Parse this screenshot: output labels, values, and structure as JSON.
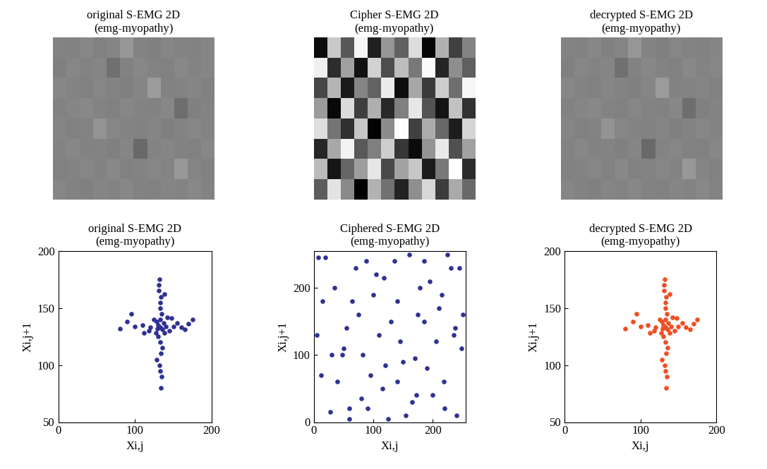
{
  "chart_data": [
    {
      "type": "heatmap",
      "title": "original S-EMG 2D\n(emg-myopathy)",
      "tick_labels": false,
      "clim": [
        0,
        255
      ],
      "cells": [
        [
          132,
          130,
          135,
          129,
          133,
          150,
          131,
          128,
          134,
          132,
          130,
          133
        ],
        [
          128,
          134,
          131,
          133,
          112,
          130,
          135,
          132,
          129,
          136,
          131,
          134
        ],
        [
          135,
          131,
          129,
          134,
          132,
          128,
          133,
          155,
          130,
          131,
          133,
          129
        ],
        [
          130,
          133,
          136,
          131,
          129,
          134,
          132,
          130,
          135,
          110,
          128,
          132
        ],
        [
          133,
          129,
          131,
          148,
          134,
          131,
          130,
          133,
          128,
          132,
          134,
          131
        ],
        [
          131,
          135,
          130,
          132,
          128,
          133,
          105,
          131,
          134,
          130,
          129,
          135
        ],
        [
          129,
          132,
          134,
          130,
          136,
          129,
          132,
          134,
          131,
          152,
          133,
          130
        ],
        [
          134,
          130,
          128,
          133,
          131,
          135,
          130,
          129,
          133,
          131,
          136,
          132
        ]
      ]
    },
    {
      "type": "heatmap",
      "title": "Cipher S-EMG 2D\n(emg-myopathy)",
      "tick_labels": false,
      "clim": [
        0,
        255
      ],
      "cells": [
        [
          12,
          200,
          87,
          245,
          33,
          150,
          98,
          220,
          5,
          176,
          64,
          131
        ],
        [
          240,
          45,
          160,
          18,
          210,
          77,
          189,
          120,
          250,
          36,
          142,
          95
        ],
        [
          70,
          181,
          25,
          133,
          99,
          236,
          14,
          167,
          58,
          205,
          111,
          246
        ],
        [
          155,
          8,
          219,
          62,
          175,
          40,
          128,
          231,
          83,
          19,
          194,
          50
        ],
        [
          222,
          116,
          48,
          197,
          3,
          140,
          252,
          66,
          172,
          104,
          29,
          213
        ],
        [
          38,
          168,
          243,
          90,
          127,
          206,
          55,
          11,
          148,
          233,
          80,
          161
        ],
        [
          187,
          22,
          102,
          158,
          230,
          72,
          164,
          199,
          27,
          121,
          254,
          44
        ],
        [
          93,
          227,
          137,
          0,
          178,
          114,
          35,
          143,
          215,
          60,
          170,
          106
        ]
      ]
    },
    {
      "type": "heatmap",
      "title": "decrypted S-EMG 2D\n(emg-myopathy)",
      "tick_labels": false,
      "clim": [
        0,
        255
      ],
      "cells": [
        [
          132,
          130,
          135,
          129,
          133,
          150,
          131,
          128,
          134,
          132,
          130,
          133
        ],
        [
          128,
          134,
          131,
          133,
          112,
          130,
          135,
          132,
          129,
          136,
          131,
          134
        ],
        [
          135,
          131,
          129,
          134,
          132,
          128,
          133,
          155,
          130,
          131,
          133,
          129
        ],
        [
          130,
          133,
          136,
          131,
          129,
          134,
          132,
          130,
          135,
          110,
          128,
          132
        ],
        [
          133,
          129,
          131,
          148,
          134,
          131,
          130,
          133,
          128,
          132,
          134,
          131
        ],
        [
          131,
          135,
          130,
          132,
          128,
          133,
          105,
          131,
          134,
          130,
          129,
          135
        ],
        [
          129,
          132,
          134,
          130,
          136,
          129,
          132,
          134,
          131,
          152,
          133,
          130
        ],
        [
          134,
          130,
          128,
          133,
          131,
          135,
          130,
          129,
          133,
          131,
          136,
          132
        ]
      ]
    },
    {
      "type": "scatter",
      "title": "original S-EMG 2D\n(emg-myopathy)",
      "x_label": "Xi,j",
      "y_label": "Xi,j+1",
      "color": "#2e3192",
      "marker": "o",
      "xlim": [
        0,
        200
      ],
      "xticks": [
        0,
        100,
        200
      ],
      "ylim": [
        50,
        200
      ],
      "yticks": [
        50,
        100,
        150,
        200
      ],
      "x": [
        133,
        130,
        136,
        128,
        140,
        133,
        134,
        132,
        131,
        135,
        133,
        134,
        132,
        133,
        134,
        120,
        110,
        100,
        90,
        80,
        150,
        160,
        170,
        175,
        145,
        125,
        138,
        130,
        142,
        127,
        133,
        131,
        136,
        118,
        155,
        165,
        95,
        128,
        138,
        133,
        129,
        137,
        112,
        148,
        135
      ],
      "y": [
        133,
        135,
        131,
        138,
        134,
        150,
        160,
        175,
        170,
        145,
        120,
        110,
        100,
        95,
        80,
        133,
        135,
        134,
        138,
        132,
        134,
        133,
        136,
        140,
        130,
        140,
        128,
        125,
        142,
        128,
        155,
        165,
        115,
        130,
        137,
        131,
        145,
        105,
        162,
        140,
        132,
        137,
        128,
        141,
        90
      ]
    },
    {
      "type": "scatter",
      "title": "Ciphered S-EMG 2D\n(emg-myopathy)",
      "x_label": "Xi,j",
      "y_label": "Xi,j+1",
      "color": "#2e3192",
      "marker": "o",
      "xlim": [
        0,
        255
      ],
      "xticks": [
        0,
        100,
        200
      ],
      "ylim": [
        0,
        255
      ],
      "yticks": [
        0,
        100,
        200
      ],
      "x": [
        5,
        20,
        35,
        48,
        60,
        75,
        88,
        95,
        110,
        118,
        125,
        140,
        150,
        160,
        172,
        185,
        195,
        205,
        218,
        230,
        240,
        250,
        12,
        28,
        55,
        70,
        82,
        100,
        115,
        135,
        145,
        165,
        178,
        190,
        210,
        225,
        238,
        248,
        8,
        40,
        65,
        90,
        105,
        130,
        155,
        170,
        200,
        215,
        235,
        245,
        15,
        50,
        80,
        120,
        175,
        220,
        30,
        140,
        185,
        60
      ],
      "y": [
        130,
        245,
        200,
        100,
        20,
        160,
        240,
        70,
        130,
        215,
        5,
        180,
        90,
        250,
        40,
        150,
        210,
        120,
        60,
        230,
        10,
        160,
        70,
        15,
        140,
        230,
        100,
        190,
        50,
        240,
        120,
        30,
        200,
        80,
        170,
        250,
        140,
        110,
        245,
        60,
        180,
        20,
        220,
        150,
        10,
        95,
        40,
        190,
        130,
        230,
        180,
        110,
        35,
        85,
        160,
        20,
        100,
        60,
        240,
        5
      ]
    },
    {
      "type": "scatter",
      "title": "decrypted S-EMG 2D\n(emg-myopathy)",
      "x_label": "Xi,j",
      "y_label": "Xi,j+1",
      "color": "#f04e23",
      "marker": "o",
      "xlim": [
        0,
        200
      ],
      "xticks": [
        0,
        100,
        200
      ],
      "ylim": [
        50,
        200
      ],
      "yticks": [
        50,
        100,
        150,
        200
      ],
      "x": [
        133,
        130,
        136,
        128,
        140,
        133,
        134,
        132,
        131,
        135,
        133,
        134,
        132,
        133,
        134,
        120,
        110,
        100,
        90,
        80,
        150,
        160,
        170,
        175,
        145,
        125,
        138,
        130,
        142,
        127,
        133,
        131,
        136,
        118,
        155,
        165,
        95,
        128,
        138,
        133,
        129,
        137,
        112,
        148,
        135
      ],
      "y": [
        133,
        135,
        131,
        138,
        134,
        150,
        160,
        175,
        170,
        145,
        120,
        110,
        100,
        95,
        80,
        133,
        135,
        134,
        138,
        132,
        134,
        133,
        136,
        140,
        130,
        140,
        128,
        125,
        142,
        128,
        155,
        165,
        115,
        130,
        137,
        131,
        145,
        105,
        162,
        140,
        132,
        137,
        128,
        141,
        90
      ]
    }
  ]
}
